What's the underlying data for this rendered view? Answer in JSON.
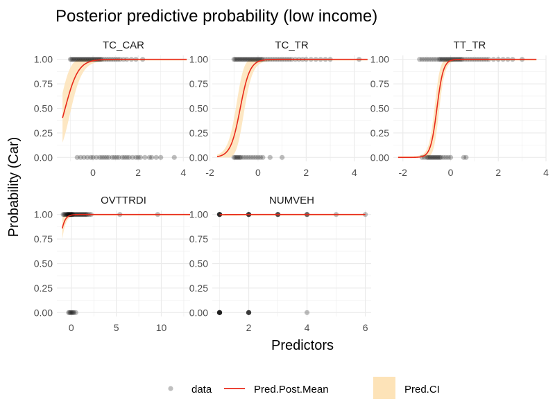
{
  "chart_data": {
    "type": "scatter",
    "title": "Posterior predictive probability (low income)",
    "xlabel": "Predictors",
    "ylabel": "Probability (Car)",
    "y_ticks": [
      "0.00",
      "0.25",
      "0.50",
      "0.75",
      "1.00"
    ],
    "ylim": [
      -0.04,
      1.04
    ],
    "grid": true,
    "legend_position": "bottom",
    "legend": [
      {
        "key": "data",
        "label": "data",
        "kind": "point"
      },
      {
        "key": "mean",
        "label": "Pred.Post.Mean",
        "kind": "line"
      },
      {
        "key": "ci",
        "label": "Pred.CI",
        "kind": "ribbon"
      }
    ],
    "colors": {
      "data": "#000000",
      "mean": "#e8281a",
      "ci": "#fde3b8",
      "grid": "#ebebeb",
      "text": "#000000",
      "tick_text": "#4d4d4d"
    },
    "panels": [
      {
        "name": "TC_CAR",
        "xlim": [
          -1.6,
          4.3
        ],
        "x_ticks": [
          0,
          2,
          4
        ],
        "x_tick_labels": [
          "0",
          "2",
          "4"
        ],
        "x_minor": [
          -1,
          1,
          3
        ],
        "curve": {
          "a": 3.4,
          "b": 4.2,
          "xmin": -1.35,
          "xmax": 4.15,
          "ci": 0.25
        },
        "points_y1": [
          -1.0,
          -0.95,
          -0.9,
          -0.85,
          -0.8,
          -0.75,
          -0.7,
          -0.65,
          -0.6,
          -0.55,
          -0.5,
          -0.45,
          -0.4,
          -0.35,
          -0.3,
          -0.25,
          -0.2,
          -0.15,
          -0.1,
          -0.05,
          0.0,
          0.05,
          0.1,
          0.15,
          0.2,
          0.25,
          0.3,
          0.35,
          0.4,
          0.5,
          0.6,
          0.7,
          0.8,
          0.9,
          1.0,
          1.1,
          1.2,
          1.35,
          1.5,
          1.7,
          1.9,
          2.2
        ],
        "points_y0": [
          -0.7,
          -0.55,
          -0.4,
          -0.25,
          -0.1,
          0.0,
          0.15,
          0.3,
          0.4,
          0.5,
          0.6,
          0.7,
          0.85,
          0.95,
          1.05,
          1.15,
          1.3,
          1.4,
          1.5,
          1.6,
          1.75,
          1.9,
          2.0,
          2.1,
          2.3,
          2.5,
          2.6,
          2.8,
          3.0,
          3.6
        ]
      },
      {
        "name": "TC_TR",
        "xlim": [
          -1.9,
          4.7
        ],
        "x_ticks": [
          -2,
          0,
          2,
          4
        ],
        "x_tick_labels": [
          "-2",
          "0",
          "2",
          "4"
        ],
        "x_minor": [
          -1,
          1,
          3
        ],
        "curve": {
          "a": 5.0,
          "b": 3.7,
          "xmin": -1.7,
          "xmax": 4.55,
          "ci": 0.25
        },
        "points_y1": [
          -1.0,
          -0.95,
          -0.9,
          -0.85,
          -0.8,
          -0.75,
          -0.7,
          -0.65,
          -0.6,
          -0.55,
          -0.5,
          -0.45,
          -0.4,
          -0.35,
          -0.3,
          -0.25,
          -0.2,
          -0.15,
          -0.1,
          -0.05,
          0.0,
          0.05,
          0.1,
          0.15,
          0.2,
          0.3,
          0.4,
          0.5,
          0.6,
          0.7,
          0.8,
          0.9,
          1.0,
          1.1,
          1.2,
          1.3,
          1.4,
          1.55,
          1.7,
          1.85,
          2.0,
          2.2,
          2.4,
          2.6,
          2.8,
          3.0,
          4.2
        ],
        "points_y0": [
          -1.0,
          -0.95,
          -0.9,
          -0.85,
          -0.8,
          -0.75,
          -0.7,
          -0.6,
          -0.5,
          -0.4,
          -0.3,
          -0.2,
          -0.1,
          0.0,
          0.1,
          0.2,
          0.5,
          1.0
        ]
      },
      {
        "name": "TT_TR",
        "xlim": [
          -2.4,
          4.0
        ],
        "x_ticks": [
          -2,
          0,
          2,
          4
        ],
        "x_tick_labels": [
          "-2",
          "0",
          "2",
          "4"
        ],
        "x_minor": [
          -1,
          1,
          3
        ],
        "curve": {
          "a": 7.5,
          "b": 4.3,
          "xmin": -2.2,
          "xmax": 3.6,
          "ci": 0.2
        },
        "points_y1": [
          -1.3,
          -1.2,
          -1.1,
          -1.0,
          -0.9,
          -0.8,
          -0.7,
          -0.6,
          -0.5,
          -0.45,
          -0.4,
          -0.35,
          -0.3,
          -0.25,
          -0.2,
          -0.15,
          -0.1,
          -0.05,
          0.0,
          0.05,
          0.1,
          0.15,
          0.2,
          0.25,
          0.3,
          0.35,
          0.4,
          0.45,
          0.5,
          0.6,
          0.7,
          0.8,
          0.9,
          1.0,
          1.1,
          1.2,
          1.3,
          1.4,
          1.5,
          1.6,
          1.8,
          2.0,
          2.2,
          2.4,
          2.6,
          3.0
        ],
        "points_y0": [
          -1.2,
          -1.1,
          -1.0,
          -0.95,
          -0.9,
          -0.85,
          -0.8,
          -0.75,
          -0.7,
          -0.65,
          -0.6,
          -0.55,
          -0.5,
          -0.45,
          -0.4,
          -0.3,
          -0.2,
          -0.1,
          0.0,
          0.55,
          0.65
        ]
      },
      {
        "name": "OVTTRDI",
        "xlim": [
          -1.6,
          13.2
        ],
        "x_ticks": [
          0,
          5,
          10
        ],
        "x_tick_labels": [
          "0",
          "5",
          "10"
        ],
        "x_minor": [
          2.5,
          7.5,
          12.5
        ],
        "curve": {
          "a": 3.2,
          "b": 5.0,
          "xmin": -1.0,
          "xmax": 13.2,
          "ci": 0.2
        },
        "points_y1": [
          -0.9,
          -0.8,
          -0.7,
          -0.6,
          -0.5,
          -0.45,
          -0.4,
          -0.35,
          -0.3,
          -0.25,
          -0.2,
          -0.15,
          -0.1,
          -0.05,
          0.0,
          0.05,
          0.1,
          0.15,
          0.2,
          0.3,
          0.4,
          0.5,
          0.6,
          0.7,
          0.8,
          0.9,
          1.0,
          1.1,
          1.2,
          1.3,
          1.4,
          1.5,
          1.6,
          1.7,
          1.8,
          2.0,
          2.2,
          5.4,
          9.6
        ],
        "points_y0": [
          -0.3,
          -0.2,
          -0.1,
          0.0,
          0.1,
          0.2,
          0.3,
          0.5
        ]
      },
      {
        "name": "NUMVEH",
        "xlim": [
          0.75,
          6.2
        ],
        "x_ticks": [
          2,
          4,
          6
        ],
        "x_tick_labels": [
          "2",
          "4",
          "6"
        ],
        "x_minor": [
          1,
          3,
          5
        ],
        "curve": {
          "a": 1.35,
          "b": 5.0,
          "xmin": 1.0,
          "xmax": 6.0,
          "ci": 0.2
        },
        "points_y1": [
          1,
          1,
          1,
          1,
          1,
          1,
          2,
          2,
          2,
          2,
          2,
          3,
          3,
          3,
          3,
          4,
          4,
          4,
          5,
          6
        ],
        "points_y0": [
          1,
          1,
          1,
          1,
          1,
          1,
          1,
          2,
          2,
          2,
          2,
          2,
          4
        ]
      }
    ]
  }
}
